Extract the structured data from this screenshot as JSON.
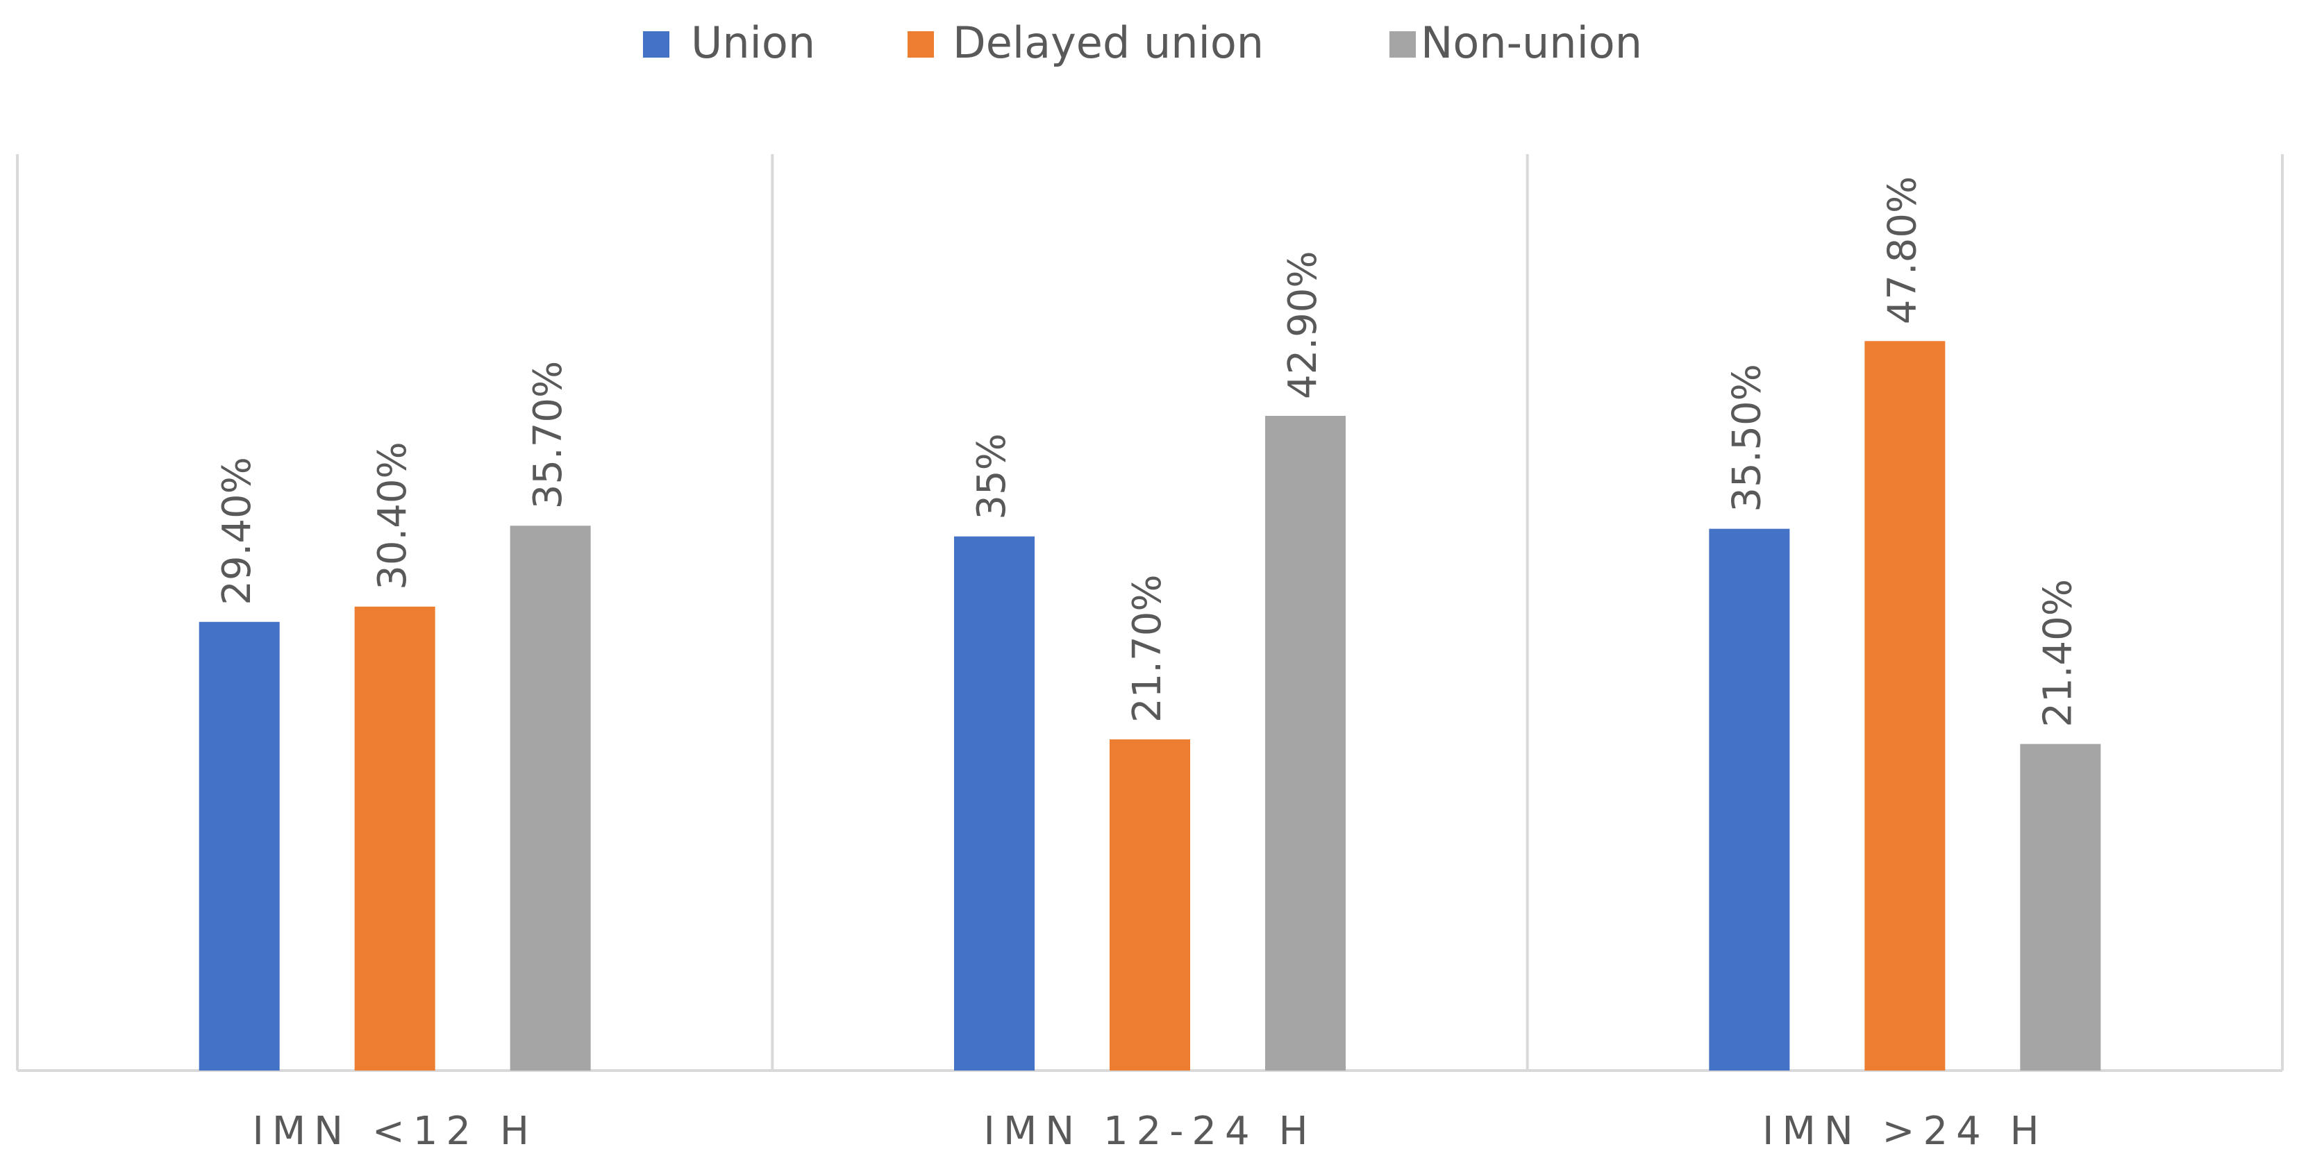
{
  "chart_data": {
    "type": "bar",
    "categories": [
      "IMN <12 H",
      "IMN 12-24 H",
      "IMN >24 H"
    ],
    "series": [
      {
        "name": "Union",
        "color": "#4472c4",
        "values": [
          29.4,
          35,
          35.5
        ],
        "value_labels": [
          "29.40%",
          "35%",
          "35.50%"
        ]
      },
      {
        "name": "Delayed union",
        "color": "#ed7d31",
        "values": [
          30.4,
          21.7,
          47.8
        ],
        "value_labels": [
          "30.40%",
          "21.70%",
          "47.80%"
        ]
      },
      {
        "name": "Non-union",
        "color": "#a5a5a5",
        "values": [
          35.7,
          42.9,
          21.4
        ],
        "value_labels": [
          "35.70%",
          "42.90%",
          "21.40%"
        ]
      }
    ],
    "legend": "top"
  }
}
